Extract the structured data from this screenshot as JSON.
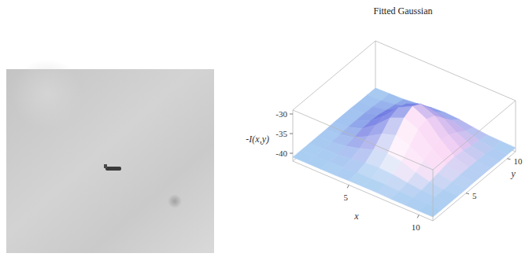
{
  "chart_data": {
    "type": "surface",
    "title": "Fitted Gaussian",
    "x_label": "x",
    "y_label": "y",
    "z_label": "-I(x,y)",
    "x": [
      1,
      2,
      3,
      4,
      5,
      6,
      7,
      8,
      9,
      10,
      11
    ],
    "y": [
      1,
      2,
      3,
      4,
      5,
      6,
      7,
      8,
      9,
      10,
      11
    ],
    "z": [
      [
        -41,
        -41,
        -41,
        -41,
        -40.9,
        -40.9,
        -40.9,
        -41,
        -41,
        -41,
        -41
      ],
      [
        -41,
        -41,
        -40.9,
        -40.8,
        -40.6,
        -40.6,
        -40.6,
        -40.8,
        -40.9,
        -41,
        -41
      ],
      [
        -41,
        -40.9,
        -40.8,
        -40.4,
        -39.9,
        -39.7,
        -39.9,
        -40.4,
        -40.8,
        -40.9,
        -41
      ],
      [
        -41,
        -40.9,
        -40.4,
        -39.5,
        -38.3,
        -37.8,
        -38.3,
        -39.5,
        -40.4,
        -40.9,
        -41
      ],
      [
        -41,
        -40.7,
        -40,
        -38.2,
        -36,
        -34.9,
        -36,
        -38.2,
        -40,
        -40.7,
        -41
      ],
      [
        -40.9,
        -40.6,
        -39.5,
        -37,
        -33.7,
        -32.2,
        -33.7,
        -37,
        -39.5,
        -40.6,
        -40.9
      ],
      [
        -40.9,
        -40.6,
        -39.3,
        -36.4,
        -32.8,
        -31,
        -32.8,
        -36.4,
        -39.3,
        -40.6,
        -40.9
      ],
      [
        -40.9,
        -40.6,
        -39.5,
        -37,
        -33.7,
        -32.2,
        -33.7,
        -37,
        -39.5,
        -40.6,
        -40.9
      ],
      [
        -41,
        -40.7,
        -40,
        -38.2,
        -36,
        -34.9,
        -36,
        -38.2,
        -40,
        -40.7,
        -41
      ],
      [
        -41,
        -40.9,
        -40.4,
        -39.5,
        -38.3,
        -37.8,
        -38.3,
        -39.5,
        -40.4,
        -40.9,
        -41
      ],
      [
        -41,
        -40.9,
        -40.8,
        -40.4,
        -39.9,
        -39.7,
        -39.9,
        -40.4,
        -40.8,
        -40.9,
        -41
      ]
    ],
    "xlim": [
      1,
      11
    ],
    "ylim": [
      1,
      11
    ],
    "zlim": [
      -42,
      -29
    ],
    "xticks": [
      5,
      10
    ],
    "yticks": [
      5,
      10
    ],
    "zticks": [
      -40,
      -35,
      -30
    ]
  }
}
